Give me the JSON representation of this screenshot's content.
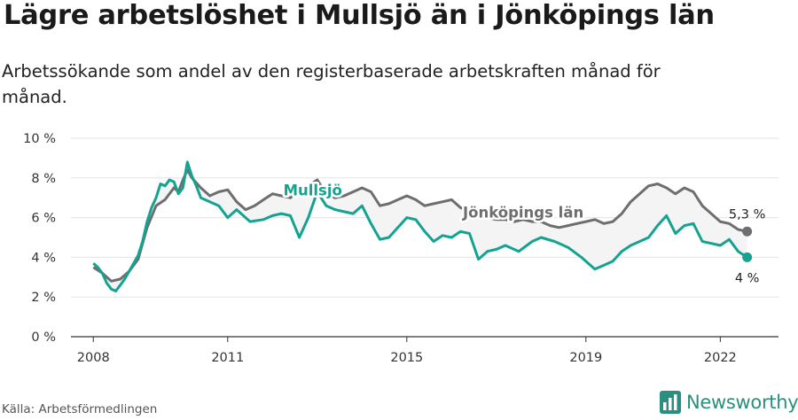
{
  "title": "Lägre arbetslöshet i Mullsjö än i Jönköpings län",
  "subtitle": "Arbetssökande som andel av den registerbaserade arbetskraften månad för månad.",
  "source": "Källa: Arbetsförmedlingen",
  "brand": "Newsworthy",
  "colors": {
    "mullsjo": "#14a390",
    "lan": "#6e6e70",
    "fill": "#f4f4f4",
    "grid": "#e3e3e3",
    "brand": "#2a8f7e"
  },
  "chart_data": {
    "type": "line",
    "ylim": [
      0,
      10
    ],
    "xlim": [
      2007.5,
      2023.3
    ],
    "y_ticks": [
      0,
      2,
      4,
      6,
      8,
      10
    ],
    "y_tick_labels": [
      "0 %",
      "2 %",
      "4 %",
      "6 %",
      "8 %",
      "10 %"
    ],
    "x_ticks": [
      2008,
      2011,
      2015,
      2019,
      2022
    ],
    "x_tick_labels": [
      "2008",
      "2011",
      "2015",
      "2019",
      "2022"
    ],
    "grid": true,
    "series": [
      {
        "name": "Mullsjö",
        "end_label": "4 %",
        "x": [
          2008.0,
          2008.1,
          2008.2,
          2008.3,
          2008.4,
          2008.5,
          2008.6,
          2008.7,
          2008.8,
          2008.9,
          2009.0,
          2009.1,
          2009.2,
          2009.3,
          2009.4,
          2009.5,
          2009.6,
          2009.7,
          2009.8,
          2009.9,
          2010.0,
          2010.1,
          2010.2,
          2010.3,
          2010.4,
          2010.6,
          2010.8,
          2011.0,
          2011.2,
          2011.5,
          2011.8,
          2012.0,
          2012.2,
          2012.4,
          2012.6,
          2012.8,
          2013.0,
          2013.2,
          2013.4,
          2013.6,
          2013.8,
          2014.0,
          2014.2,
          2014.4,
          2014.6,
          2014.8,
          2015.0,
          2015.2,
          2015.4,
          2015.6,
          2015.8,
          2016.0,
          2016.2,
          2016.4,
          2016.6,
          2016.8,
          2017.0,
          2017.2,
          2017.5,
          2017.8,
          2018.0,
          2018.3,
          2018.6,
          2018.9,
          2019.0,
          2019.2,
          2019.4,
          2019.6,
          2019.8,
          2020.0,
          2020.2,
          2020.4,
          2020.6,
          2020.8,
          2021.0,
          2021.2,
          2021.4,
          2021.6,
          2021.8,
          2022.0,
          2022.2,
          2022.4,
          2022.6
        ],
        "y": [
          3.7,
          3.5,
          3.2,
          2.7,
          2.4,
          2.3,
          2.6,
          2.9,
          3.3,
          3.7,
          4.1,
          4.8,
          5.8,
          6.5,
          7.0,
          7.7,
          7.6,
          7.9,
          7.8,
          7.2,
          7.5,
          8.8,
          8.1,
          7.6,
          7.0,
          6.8,
          6.6,
          6.0,
          6.4,
          5.8,
          5.9,
          6.1,
          6.2,
          6.1,
          5.0,
          6.0,
          7.3,
          6.6,
          6.4,
          6.3,
          6.2,
          6.6,
          5.7,
          4.9,
          5.0,
          5.5,
          6.0,
          5.9,
          5.3,
          4.8,
          5.1,
          5.0,
          5.3,
          5.2,
          3.9,
          4.3,
          4.4,
          4.6,
          4.3,
          4.8,
          5.0,
          4.8,
          4.5,
          4.0,
          3.8,
          3.4,
          3.6,
          3.8,
          4.3,
          4.6,
          4.8,
          5.0,
          5.6,
          6.1,
          5.2,
          5.6,
          5.7,
          4.8,
          4.7,
          4.6,
          4.9,
          4.3,
          4.0
        ]
      },
      {
        "name": "Jönköpings län",
        "end_label": "5,3 %",
        "x": [
          2008.0,
          2008.2,
          2008.4,
          2008.6,
          2008.8,
          2009.0,
          2009.2,
          2009.4,
          2009.6,
          2009.8,
          2009.9,
          2010.0,
          2010.1,
          2010.2,
          2010.4,
          2010.6,
          2010.8,
          2011.0,
          2011.2,
          2011.4,
          2011.6,
          2011.8,
          2012.0,
          2012.2,
          2012.4,
          2012.6,
          2012.8,
          2013.0,
          2013.2,
          2013.4,
          2013.6,
          2013.8,
          2014.0,
          2014.2,
          2014.4,
          2014.6,
          2014.8,
          2015.0,
          2015.2,
          2015.4,
          2015.6,
          2015.8,
          2016.0,
          2016.2,
          2016.4,
          2016.6,
          2016.8,
          2017.0,
          2017.2,
          2017.4,
          2017.6,
          2017.8,
          2018.0,
          2018.2,
          2018.4,
          2018.6,
          2018.8,
          2019.0,
          2019.2,
          2019.4,
          2019.6,
          2019.8,
          2020.0,
          2020.2,
          2020.4,
          2020.6,
          2020.8,
          2021.0,
          2021.2,
          2021.4,
          2021.6,
          2021.8,
          2022.0,
          2022.2,
          2022.4,
          2022.6
        ],
        "y": [
          3.5,
          3.2,
          2.8,
          2.9,
          3.3,
          3.9,
          5.5,
          6.6,
          6.9,
          7.5,
          7.3,
          7.9,
          8.4,
          8.0,
          7.5,
          7.1,
          7.3,
          7.4,
          6.8,
          6.4,
          6.6,
          6.9,
          7.2,
          7.1,
          7.0,
          7.4,
          7.6,
          7.9,
          7.2,
          7.0,
          7.1,
          7.3,
          7.5,
          7.3,
          6.6,
          6.7,
          6.9,
          7.1,
          6.9,
          6.6,
          6.7,
          6.8,
          6.9,
          6.5,
          6.3,
          6.2,
          6.0,
          5.9,
          5.9,
          5.8,
          5.9,
          5.8,
          5.8,
          5.6,
          5.5,
          5.6,
          5.7,
          5.8,
          5.9,
          5.7,
          5.8,
          6.2,
          6.8,
          7.2,
          7.6,
          7.7,
          7.5,
          7.2,
          7.5,
          7.3,
          6.6,
          6.2,
          5.8,
          5.7,
          5.4,
          5.3
        ]
      }
    ]
  }
}
